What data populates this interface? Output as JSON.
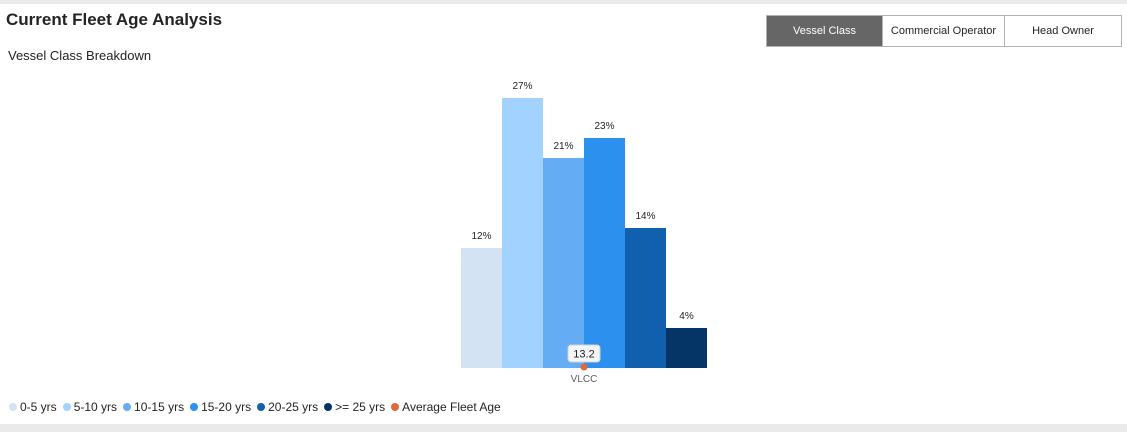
{
  "header": {
    "title": "Current Fleet Age Analysis",
    "subtitle": "Vessel Class Breakdown"
  },
  "toggles": [
    {
      "label": "Vessel Class",
      "active": true
    },
    {
      "label": "Commercial Operator",
      "active": false
    },
    {
      "label": "Head Owner",
      "active": false
    }
  ],
  "chart_data": {
    "type": "bar",
    "categories": [
      "VLCC"
    ],
    "series": [
      {
        "name": "0-5 yrs",
        "values": [
          12
        ],
        "label": "12%",
        "color": "#d4e3f3"
      },
      {
        "name": "5-10 yrs",
        "values": [
          27
        ],
        "label": "27%",
        "color": "#a2d2ff"
      },
      {
        "name": "10-15 yrs",
        "values": [
          21
        ],
        "label": "21%",
        "color": "#64acf3"
      },
      {
        "name": "15-20 yrs",
        "values": [
          23
        ],
        "label": "23%",
        "color": "#2b90ee"
      },
      {
        "name": "20-25 yrs",
        "values": [
          14
        ],
        "label": "14%",
        "color": "#1060ad"
      },
      {
        "name": ">= 25 yrs",
        "values": [
          4
        ],
        "label": "4%",
        "color": "#043566"
      }
    ],
    "average_fleet_age": {
      "name": "Average Fleet Age",
      "value": 13.2,
      "label": "13.2",
      "color": "#e0683c"
    },
    "ylim": [
      0,
      30
    ],
    "grid": false,
    "legend_position": "bottom-left"
  }
}
